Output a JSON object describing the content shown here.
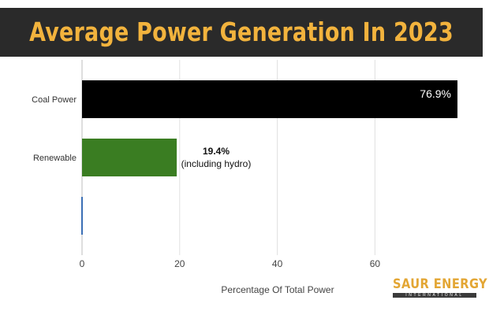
{
  "header": {
    "title": "Average Power Generation In 2023"
  },
  "logo": {
    "name": "SAUR ENERGY",
    "tagline": "INTERNATIONAL"
  },
  "colors": {
    "title_text": "#f2b33d",
    "title_band": "#2a2a2a",
    "coal": "#000000",
    "renewable": "#3a7d22",
    "grid": "#e0e0e0"
  },
  "chart_data": {
    "type": "bar",
    "orientation": "horizontal",
    "categories": [
      "Coal Power",
      "Renewable",
      ""
    ],
    "values": [
      76.9,
      19.4,
      0
    ],
    "value_labels": [
      "76.9%",
      "19.4%",
      ""
    ],
    "annotation": "(including hydro)",
    "xlabel": "Percentage Of Total Power",
    "ylabel": "",
    "xlim": [
      0,
      80
    ],
    "xticks": [
      0,
      20,
      40,
      60
    ],
    "grid": true,
    "legend": "none"
  }
}
